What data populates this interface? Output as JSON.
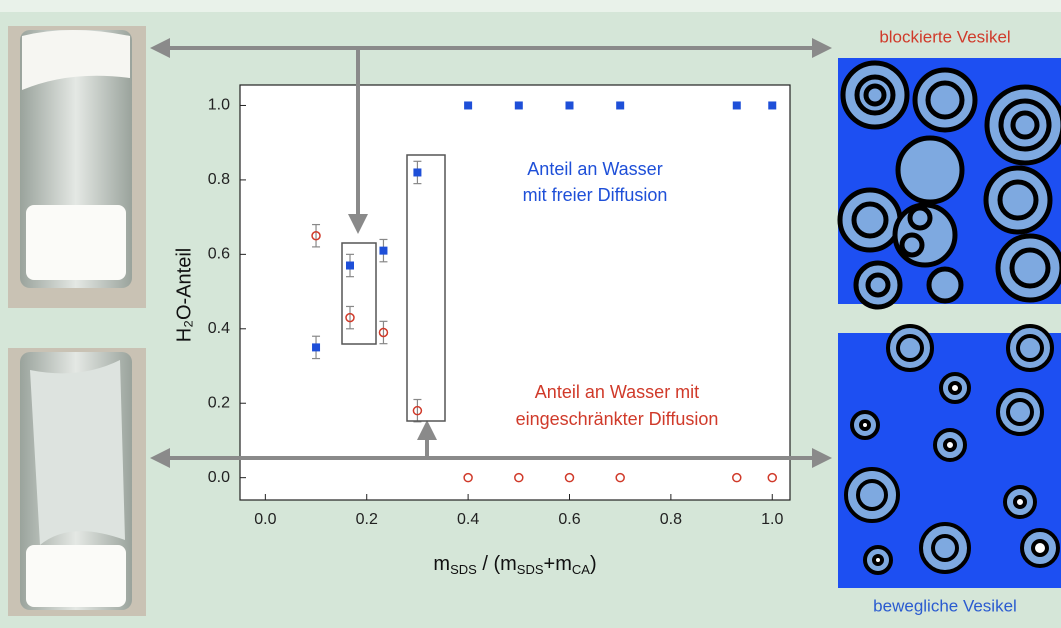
{
  "chart_data": {
    "type": "scatter",
    "x_label": [
      "m",
      "SDS",
      " / (m",
      "SDS",
      "+m",
      "CA",
      ")"
    ],
    "y_label": "H₂O-Anteil",
    "xlim": [
      -0.05,
      1.035
    ],
    "ylim": [
      -0.06,
      1.055
    ],
    "xticks": [
      {
        "value": 0,
        "label": "0.0"
      },
      {
        "value": 0.2,
        "label": "0.2"
      },
      {
        "value": 0.4,
        "label": "0.4"
      },
      {
        "value": 0.6,
        "label": "0.6"
      },
      {
        "value": 0.8,
        "label": "0.8"
      },
      {
        "value": 1,
        "label": "1.0"
      }
    ],
    "yticks": [
      {
        "value": 0,
        "label": "0.0"
      },
      {
        "value": 0.2,
        "label": "0.2"
      },
      {
        "value": 0.4,
        "label": "0.4"
      },
      {
        "value": 0.6,
        "label": "0.6"
      },
      {
        "value": 0.8,
        "label": "0.8"
      },
      {
        "value": 1,
        "label": "1.0"
      }
    ],
    "series": [
      {
        "name": [
          "Anteil an Wasser",
          "mit freier Diffusion"
        ],
        "color": "#1e4fd8",
        "marker": "square",
        "x": [
          0.1,
          0.167,
          0.233,
          0.3,
          0.4,
          0.5,
          0.6,
          0.7,
          0.93,
          1.0
        ],
        "values": [
          0.35,
          0.57,
          0.61,
          0.82,
          1.0,
          1.0,
          1.0,
          1.0,
          1.0,
          1.0
        ],
        "errors": [
          0.03,
          0.03,
          0.03,
          0.03,
          null,
          null,
          null,
          null,
          null,
          null
        ]
      },
      {
        "name": [
          "Anteil an Wasser mit",
          "eingeschränkter Diffusion"
        ],
        "color": "#d03a2a",
        "marker": "circle",
        "x": [
          0.1,
          0.167,
          0.233,
          0.3,
          0.4,
          0.5,
          0.6,
          0.7,
          0.93,
          1.0
        ],
        "values": [
          0.65,
          0.43,
          0.39,
          0.18,
          0,
          0,
          0,
          0,
          0,
          0
        ],
        "errors": [
          0.03,
          0.03,
          0.03,
          0.03,
          null,
          null,
          null,
          null,
          null,
          null
        ]
      }
    ],
    "annotations": [
      "blockierte Vesikel",
      "bewegliche Vesikel"
    ]
  }
}
